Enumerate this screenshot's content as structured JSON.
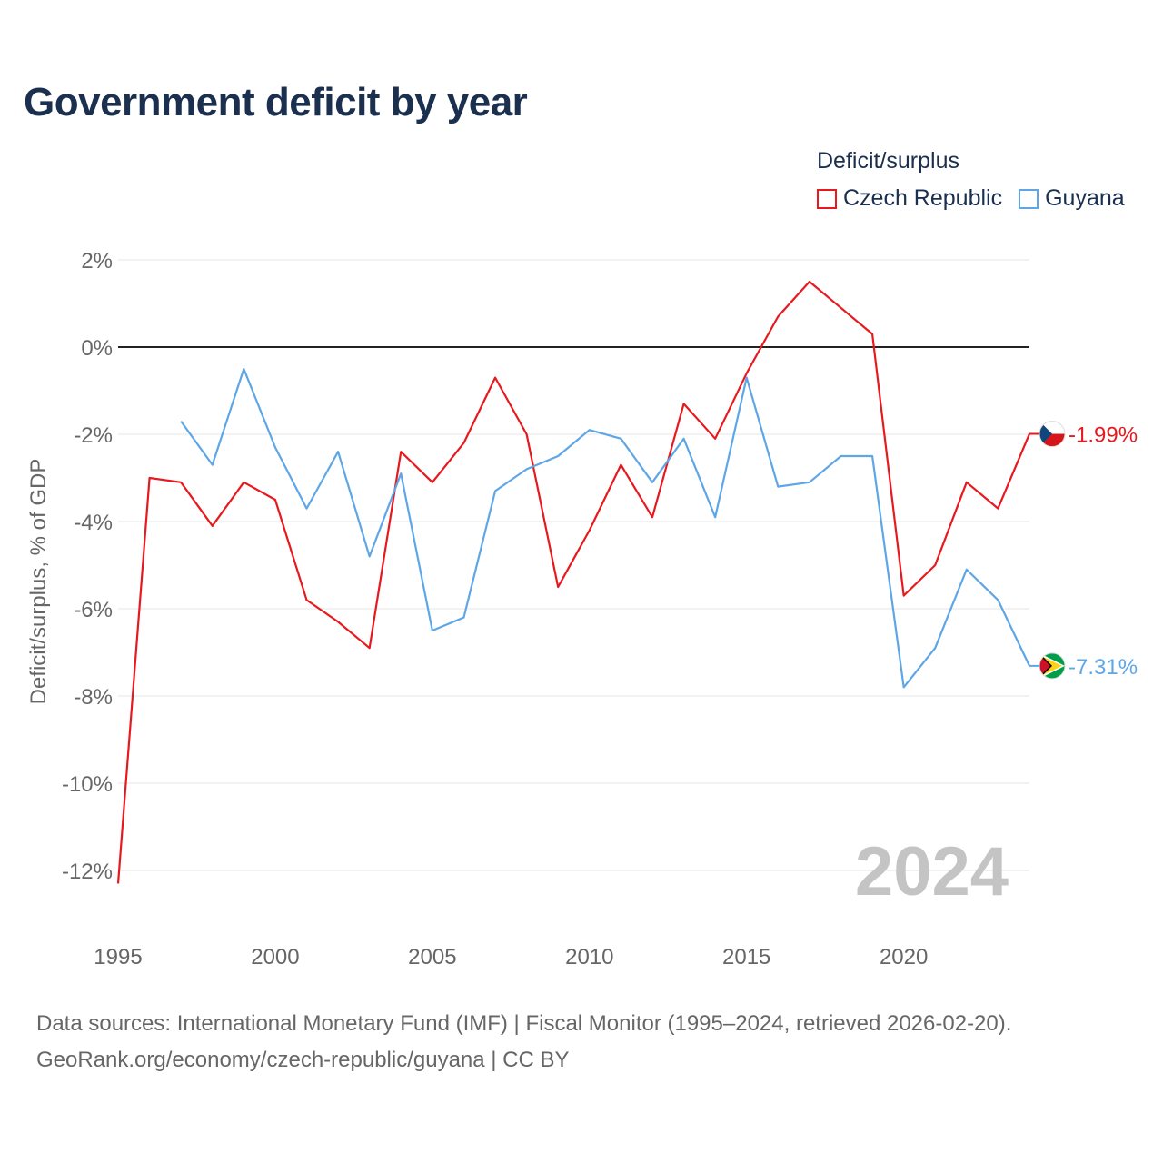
{
  "title": "Government deficit by year",
  "legend": {
    "title": "Deficit/surplus",
    "items": [
      {
        "name": "Czech Republic",
        "color": "#e8191e"
      },
      {
        "name": "Guyana",
        "color": "#5ea6e6"
      }
    ]
  },
  "year_watermark": "2024",
  "source": {
    "line1": "Data sources: International Monetary Fund (IMF) | Fiscal Monitor (1995–2024, retrieved 2026-02-20).",
    "line2": "GeoRank.org/economy/czech-republic/guyana | CC BY"
  },
  "chart_data": {
    "type": "line",
    "title": "Government deficit by year",
    "xlabel": "",
    "ylabel": "Deficit/surplus, % of GDP",
    "xlim": [
      1995,
      2024
    ],
    "ylim": [
      -13,
      2
    ],
    "x_ticks": [
      1995,
      2000,
      2005,
      2010,
      2015,
      2020
    ],
    "y_ticks": [
      2,
      0,
      -2,
      -4,
      -6,
      -8,
      -10,
      -12
    ],
    "y_tick_labels": [
      "2%",
      "0%",
      "-2%",
      "-4%",
      "-6%",
      "-8%",
      "-10%",
      "-12%"
    ],
    "grid": true,
    "legend_position": "top-right",
    "series": [
      {
        "name": "Czech Republic",
        "color": "#e8191e",
        "end_label": "-1.99%",
        "flag": "czech-republic",
        "x": [
          1995,
          1996,
          1997,
          1998,
          1999,
          2000,
          2001,
          2002,
          2003,
          2004,
          2005,
          2006,
          2007,
          2008,
          2009,
          2010,
          2011,
          2012,
          2013,
          2014,
          2015,
          2016,
          2017,
          2018,
          2019,
          2020,
          2021,
          2022,
          2023,
          2024
        ],
        "values": [
          -12.3,
          -3.0,
          -3.1,
          -4.1,
          -3.1,
          -3.5,
          -5.8,
          -6.3,
          -6.9,
          -2.4,
          -3.1,
          -2.2,
          -0.7,
          -2.0,
          -5.5,
          -4.2,
          -2.7,
          -3.9,
          -1.3,
          -2.1,
          -0.6,
          0.7,
          1.5,
          0.9,
          0.3,
          -5.7,
          -5.0,
          -3.1,
          -3.7,
          -1.99
        ]
      },
      {
        "name": "Guyana",
        "color": "#5ea6e6",
        "end_label": "-7.31%",
        "flag": "guyana",
        "x": [
          1997,
          1998,
          1999,
          2000,
          2001,
          2002,
          2003,
          2004,
          2005,
          2006,
          2007,
          2008,
          2009,
          2010,
          2011,
          2012,
          2013,
          2014,
          2015,
          2016,
          2017,
          2018,
          2019,
          2020,
          2021,
          2022,
          2023,
          2024
        ],
        "values": [
          -1.7,
          -2.7,
          -0.5,
          -2.3,
          -3.7,
          -2.4,
          -4.8,
          -2.9,
          -6.5,
          -6.2,
          -3.3,
          -2.8,
          -2.5,
          -1.9,
          -2.1,
          -3.1,
          -2.1,
          -3.9,
          -0.7,
          -3.2,
          -3.1,
          -2.5,
          -2.5,
          -7.8,
          -6.9,
          -5.1,
          -5.8,
          -7.31
        ]
      }
    ]
  }
}
